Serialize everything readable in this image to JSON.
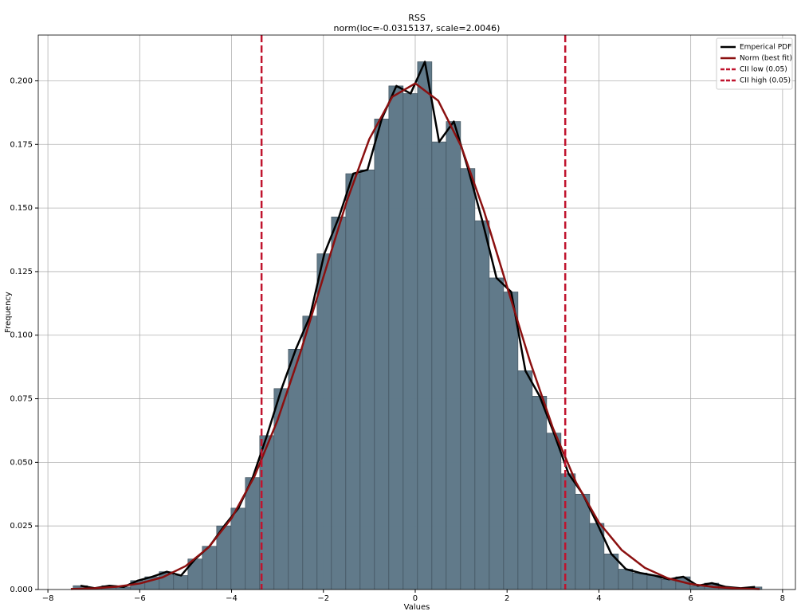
{
  "chart_data": {
    "type": "histogram",
    "title": "RSS",
    "subtitle": "norm(loc=-0.0315137, scale=2.0046)",
    "x_label": "Values",
    "y_label": "Frequency",
    "bins": [
      -7.45,
      -7.1375,
      -6.825,
      -6.5125,
      -6.2,
      -5.8875,
      -5.575,
      -5.2625,
      -4.95,
      -4.6375,
      -4.325,
      -4.0125,
      -3.7,
      -3.3875,
      -3.075,
      -2.7625,
      -2.45,
      -2.1375,
      -1.825,
      -1.5125,
      -1.2,
      -0.8875,
      -0.575,
      -0.2625,
      0.05,
      0.3625,
      0.675,
      0.9875,
      1.3,
      1.6125,
      1.925,
      2.2375,
      2.55,
      2.8625,
      3.175,
      3.4875,
      3.8,
      4.1125,
      4.425,
      4.7375,
      5.05,
      5.3625,
      5.675,
      5.9875,
      6.3,
      6.6125,
      6.925,
      7.2375,
      7.55
    ],
    "values": [
      0.0015,
      0.0005,
      0.0015,
      0.001,
      0.0035,
      0.005,
      0.007,
      0.0055,
      0.012,
      0.017,
      0.025,
      0.032,
      0.044,
      0.0605,
      0.079,
      0.0945,
      0.1075,
      0.132,
      0.1465,
      0.1635,
      0.165,
      0.185,
      0.198,
      0.195,
      0.2075,
      0.176,
      0.184,
      0.1655,
      0.145,
      0.1225,
      0.117,
      0.086,
      0.076,
      0.0615,
      0.0455,
      0.0375,
      0.026,
      0.014,
      0.008,
      0.0065,
      0.0055,
      0.004,
      0.005,
      0.0015,
      0.0025,
      0.001,
      0.0005,
      0.001
    ],
    "color": "#5f7889",
    "edgecolor": "#3a4a55",
    "lines": [
      {
        "name": "Emperical PDF",
        "color": "#000000",
        "x": [
          -7.29,
          -6.98,
          -6.66,
          -6.35,
          -6.04,
          -5.73,
          -5.41,
          -5.1,
          -4.79,
          -4.48,
          -4.16,
          -3.85,
          -3.54,
          -3.23,
          -2.91,
          -2.6,
          -2.29,
          -1.98,
          -1.66,
          -1.35,
          -1.04,
          -0.73,
          -0.41,
          -0.1,
          0.21,
          0.52,
          0.84,
          1.15,
          1.46,
          1.77,
          2.09,
          2.4,
          2.71,
          3.02,
          3.34,
          3.65,
          3.96,
          4.27,
          4.59,
          4.9,
          5.21,
          5.52,
          5.84,
          6.15,
          6.46,
          6.77,
          7.09,
          7.4
        ],
        "values": [
          0.0015,
          0.0005,
          0.0015,
          0.001,
          0.0035,
          0.005,
          0.007,
          0.0055,
          0.012,
          0.017,
          0.025,
          0.032,
          0.044,
          0.0605,
          0.079,
          0.0945,
          0.1075,
          0.132,
          0.1465,
          0.1635,
          0.165,
          0.185,
          0.198,
          0.195,
          0.2075,
          0.176,
          0.184,
          0.1655,
          0.145,
          0.1225,
          0.117,
          0.086,
          0.076,
          0.0615,
          0.0455,
          0.0375,
          0.026,
          0.014,
          0.008,
          0.0065,
          0.0055,
          0.004,
          0.005,
          0.0015,
          0.0025,
          0.001,
          0.0005,
          0.001
        ]
      },
      {
        "name": "Norm (best fit)",
        "color": "#8b1010",
        "x": [
          -7.5,
          -7,
          -6.5,
          -6,
          -5.5,
          -5,
          -4.5,
          -4,
          -3.5,
          -3,
          -2.5,
          -2,
          -1.5,
          -1,
          -0.5,
          0,
          0.5,
          1,
          1.5,
          2,
          2.5,
          3,
          3.5,
          4,
          4.5,
          5,
          5.5,
          6,
          6.5,
          7,
          7.5
        ],
        "values": [
          0.000193,
          0.000473,
          0.001092,
          0.002367,
          0.00482,
          0.00922,
          0.01658,
          0.02804,
          0.04454,
          0.06649,
          0.09324,
          0.1229,
          0.1522,
          0.1771,
          0.1937,
          0.199,
          0.1922,
          0.1743,
          0.1487,
          0.1191,
          0.08966,
          0.06343,
          0.04217,
          0.02635,
          0.01546,
          0.00853,
          0.00442,
          0.002153,
          0.000986,
          0.000424,
          0.000171
        ]
      }
    ],
    "vlines": [
      {
        "name": "CII low (0.05)",
        "color": "#c0142e",
        "x": -3.347
      },
      {
        "name": "CII high (0.05)",
        "color": "#c0142e",
        "x": 3.267
      }
    ],
    "xlim": [
      -8.21,
      8.28
    ],
    "ylim": [
      0,
      0.218
    ],
    "xticks": [
      {
        "value": -8,
        "label": "−8"
      },
      {
        "value": -6,
        "label": "−6"
      },
      {
        "value": -4,
        "label": "−4"
      },
      {
        "value": -2,
        "label": "−2"
      },
      0,
      2,
      4,
      6,
      8
    ],
    "yticks": [
      {
        "value": 0,
        "label": "0.000"
      },
      {
        "value": 0.025,
        "label": "0.025"
      },
      {
        "value": 0.05,
        "label": "0.050"
      },
      {
        "value": 0.075,
        "label": "0.075"
      },
      {
        "value": 0.1,
        "label": "0.100"
      },
      {
        "value": 0.125,
        "label": "0.125"
      },
      {
        "value": 0.15,
        "label": "0.150"
      },
      {
        "value": 0.175,
        "label": "0.175"
      },
      {
        "value": 0.2,
        "label": "0.200"
      }
    ],
    "grid": true,
    "legend": "upper right"
  }
}
